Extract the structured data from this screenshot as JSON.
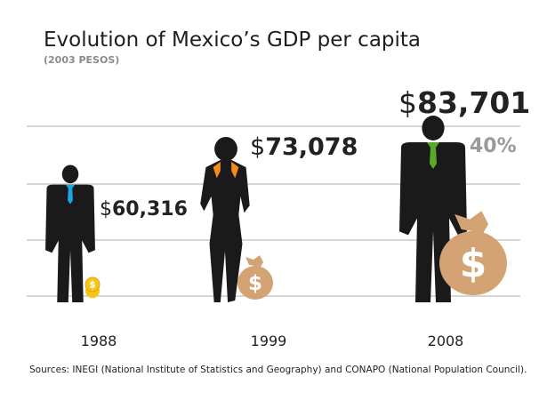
{
  "chart_data": {
    "type": "bar",
    "title": "Evolution of Mexico’s GDP per capita",
    "subtitle": "(2003 PESOS)",
    "currency_symbol": "$",
    "categories": [
      "1988",
      "1999",
      "2008"
    ],
    "values": [
      60316,
      73078,
      83701
    ],
    "value_labels": [
      "60,316",
      "73,078",
      "83,701"
    ],
    "annotation": "40%",
    "source": "Sources: INEGI (National Institute of Statistics and Geography) and CONAPO (National Population Council).",
    "xlabel": "",
    "ylabel": "",
    "grid": true
  },
  "colors": {
    "figure": "#1a1a1a",
    "gridline": "#c8c8c8",
    "tie_1988": "#1aa6de",
    "tie_1999": "#f28c1e",
    "tie_2008": "#5aaa2a",
    "coin": "#f5c518",
    "bag": "#d4a373",
    "bag_mark": "#ffffff",
    "annotation": "#9a9a9a"
  }
}
